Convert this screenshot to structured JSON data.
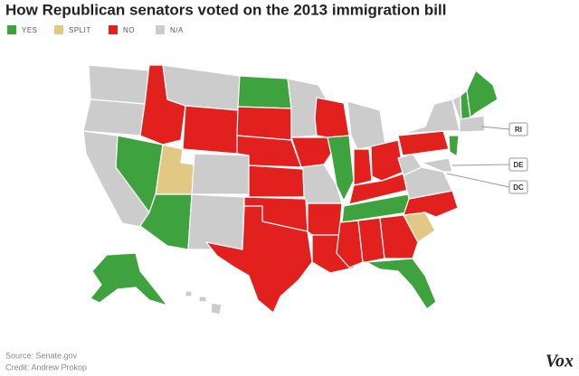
{
  "header": {
    "title": "How Republican senators voted on the 2013 immigration bill"
  },
  "legend": [
    {
      "label": "YES",
      "color": "#3ea33e"
    },
    {
      "label": "SPLIT",
      "color": "#e1c985"
    },
    {
      "label": "NO",
      "color": "#e2201e"
    },
    {
      "label": "N/A",
      "color": "#cccccc"
    }
  ],
  "map": {
    "callouts": [
      "RI",
      "DE",
      "DC"
    ]
  },
  "footer": {
    "source": "Source: Senate.gov",
    "credit": "Credit: Andrew Prokop",
    "logo": "Vox"
  }
}
